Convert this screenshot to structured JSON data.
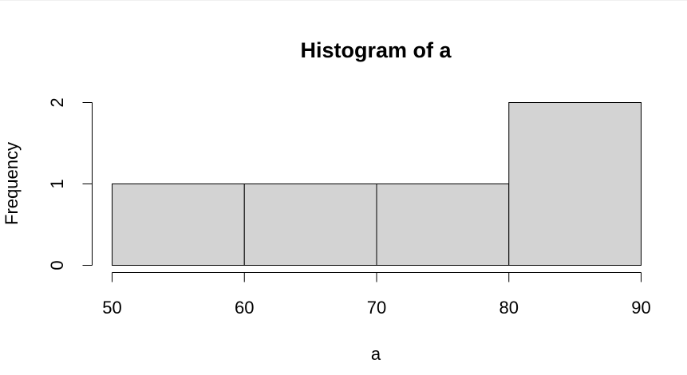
{
  "chart_data": {
    "type": "bar",
    "title": "Histogram of a",
    "xlabel": "a",
    "ylabel": "Frequency",
    "bins": [
      {
        "start": 50,
        "end": 60,
        "count": 1
      },
      {
        "start": 60,
        "end": 70,
        "count": 1
      },
      {
        "start": 70,
        "end": 80,
        "count": 1
      },
      {
        "start": 80,
        "end": 90,
        "count": 2
      }
    ],
    "x_ticks": [
      "50",
      "60",
      "70",
      "80",
      "90"
    ],
    "y_ticks": [
      "0",
      "1",
      "2"
    ],
    "xlim": [
      50,
      90
    ],
    "ylim": [
      0,
      2
    ],
    "grid": false,
    "bar_color": "#d3d3d3",
    "edge_color": "#000000"
  }
}
